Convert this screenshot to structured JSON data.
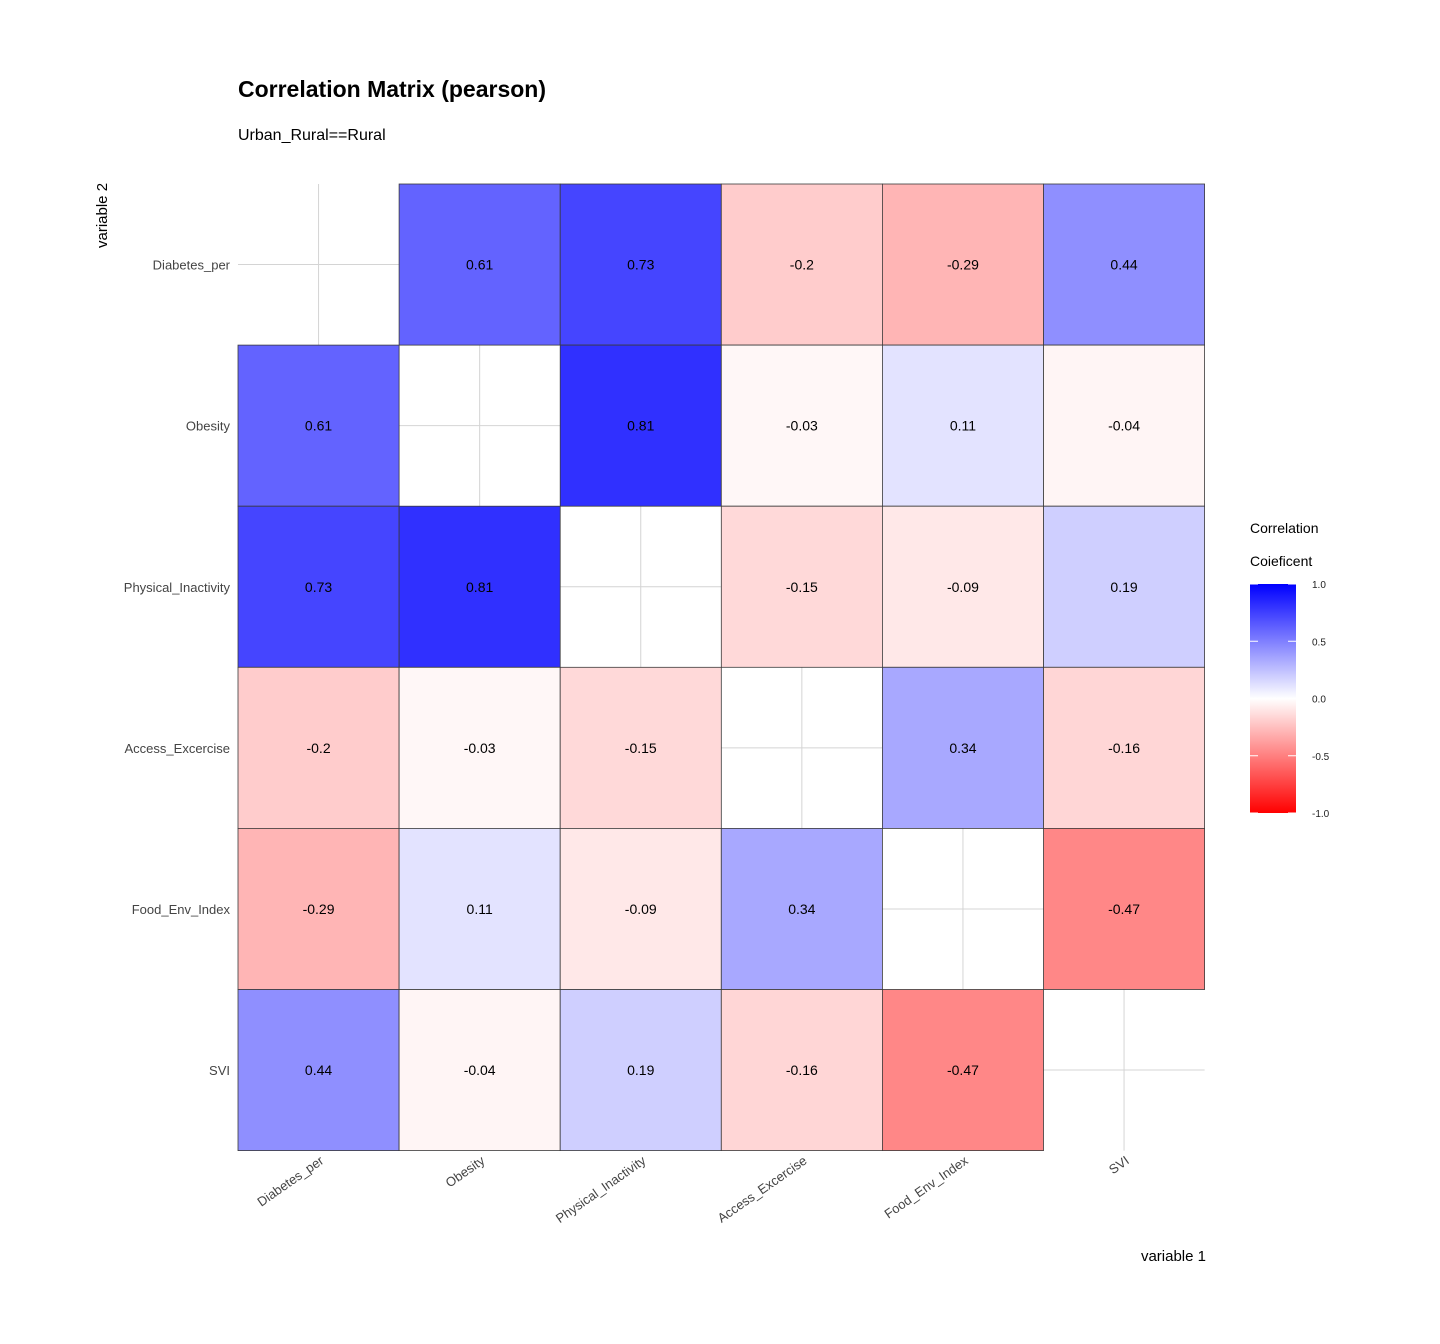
{
  "chart_data": {
    "type": "heatmap",
    "title": "Correlation Matrix (pearson)",
    "subtitle": "Urban_Rural==Rural",
    "xlabel": "variable 1",
    "ylabel": "variable 2",
    "variables": [
      "Diabetes_per",
      "Obesity",
      "Physical_Inactivity",
      "Access_Excercise",
      "Food_Env_Index",
      "SVI"
    ],
    "matrix": [
      [
        null,
        0.61,
        0.73,
        -0.2,
        -0.29,
        0.44
      ],
      [
        0.61,
        null,
        0.81,
        -0.03,
        0.11,
        -0.04
      ],
      [
        0.73,
        0.81,
        null,
        -0.15,
        -0.09,
        0.19
      ],
      [
        -0.2,
        -0.03,
        -0.15,
        null,
        0.34,
        -0.16
      ],
      [
        -0.29,
        0.11,
        -0.09,
        0.34,
        null,
        -0.47
      ],
      [
        0.44,
        -0.04,
        0.19,
        -0.16,
        -0.47,
        null
      ]
    ],
    "legend": {
      "title_lines": [
        "Correlation",
        "Coieficent"
      ],
      "ticks": [
        "1.0",
        "0.5",
        "0.0",
        "-0.5",
        "-1.0"
      ],
      "range": [
        -1,
        1
      ],
      "colors": {
        "low": "#ff0000",
        "mid": "#ffffff",
        "high": "#0000ff"
      },
      "placement": "right"
    },
    "grid": true
  }
}
